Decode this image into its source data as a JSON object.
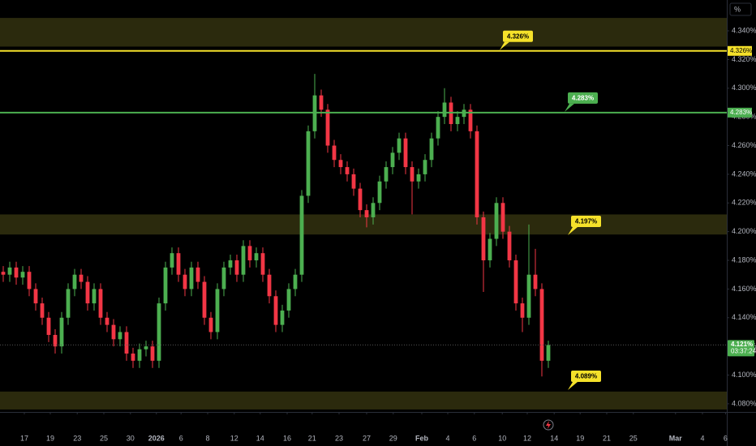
{
  "chart_data": {
    "type": "candlestick",
    "axis_unit": "%",
    "up_color": "#4caf50",
    "down_color": "#f23645",
    "xlim": [
      0,
      112
    ],
    "xticks": [
      {
        "value": 3.75,
        "label": "17"
      },
      {
        "value": 7.75,
        "label": "19"
      },
      {
        "value": 11.9,
        "label": "23"
      },
      {
        "value": 16,
        "label": "25"
      },
      {
        "value": 20.1,
        "label": "30"
      },
      {
        "value": 24.1,
        "label": "2026"
      },
      {
        "value": 27.9,
        "label": "6"
      },
      {
        "value": 32,
        "label": "8"
      },
      {
        "value": 36.1,
        "label": "12"
      },
      {
        "value": 40.1,
        "label": "14"
      },
      {
        "value": 44.25,
        "label": "16"
      },
      {
        "value": 48.1,
        "label": "21"
      },
      {
        "value": 52.25,
        "label": "23"
      },
      {
        "value": 56.5,
        "label": "27"
      },
      {
        "value": 60.6,
        "label": "29"
      },
      {
        "value": 65,
        "label": "Feb"
      },
      {
        "value": 69,
        "label": "4"
      },
      {
        "value": 73.1,
        "label": "6"
      },
      {
        "value": 77.4,
        "label": "10"
      },
      {
        "value": 81.25,
        "label": "12"
      },
      {
        "value": 85.4,
        "label": "14"
      },
      {
        "value": 89.4,
        "label": "19"
      },
      {
        "value": 93.5,
        "label": "21"
      },
      {
        "value": 97.6,
        "label": "25"
      },
      {
        "value": 104.1,
        "label": "Mar"
      },
      {
        "value": 108.25,
        "label": "4"
      },
      {
        "value": 111.8,
        "label": "6"
      }
    ],
    "ylim": [
      4.0743,
      4.3615
    ],
    "yticks": [
      {
        "value": 4.08,
        "label": "4.080%"
      },
      {
        "value": 4.1,
        "label": "4.100%"
      },
      {
        "value": 4.12,
        "label": "4.120%"
      },
      {
        "value": 4.14,
        "label": "4.140%"
      },
      {
        "value": 4.16,
        "label": "4.160%"
      },
      {
        "value": 4.18,
        "label": "4.180%"
      },
      {
        "value": 4.2,
        "label": "4.200%"
      },
      {
        "value": 4.22,
        "label": "4.220%"
      },
      {
        "value": 4.24,
        "label": "4.240%"
      },
      {
        "value": 4.26,
        "label": "4.260%"
      },
      {
        "value": 4.28,
        "label": "4.280%"
      },
      {
        "value": 4.3,
        "label": "4.300%"
      },
      {
        "value": 4.32,
        "label": "4.320%"
      },
      {
        "value": 4.34,
        "label": "4.340%"
      }
    ],
    "open": [
      4.172,
      4.17,
      4.175,
      4.168,
      4.172,
      4.16,
      4.15,
      4.14,
      4.128,
      4.12,
      4.14,
      4.16,
      4.17,
      4.165,
      4.15,
      4.16,
      4.14,
      4.135,
      4.125,
      4.13,
      4.115,
      4.11,
      4.118,
      4.12,
      4.11,
      4.15,
      4.175,
      4.185,
      4.17,
      4.16,
      4.175,
      4.165,
      4.14,
      4.13,
      4.16,
      4.175,
      4.18,
      4.17,
      4.19,
      4.18,
      4.185,
      4.17,
      4.155,
      4.135,
      4.145,
      4.16,
      4.17,
      4.225,
      4.27,
      4.295,
      4.285,
      4.26,
      4.25,
      4.245,
      4.24,
      4.23,
      4.215,
      4.21,
      4.22,
      4.235,
      4.245,
      4.255,
      4.265,
      4.245,
      4.235,
      4.24,
      4.25,
      4.265,
      4.28,
      4.29,
      4.275,
      4.28,
      4.285,
      4.27,
      4.21,
      4.18,
      4.195,
      4.22,
      4.2,
      4.18,
      4.15,
      4.14,
      4.17,
      4.16,
      4.11
    ],
    "high": [
      4.176,
      4.179,
      4.179,
      4.176,
      4.176,
      4.164,
      4.154,
      4.144,
      4.132,
      4.144,
      4.164,
      4.174,
      4.174,
      4.169,
      4.164,
      4.164,
      4.144,
      4.139,
      4.134,
      4.134,
      4.119,
      4.122,
      4.124,
      4.124,
      4.154,
      4.179,
      4.189,
      4.189,
      4.174,
      4.179,
      4.179,
      4.169,
      4.144,
      4.164,
      4.179,
      4.184,
      4.184,
      4.194,
      4.194,
      4.189,
      4.189,
      4.174,
      4.159,
      4.149,
      4.164,
      4.174,
      4.229,
      4.274,
      4.31,
      4.299,
      4.289,
      4.264,
      4.254,
      4.249,
      4.244,
      4.234,
      4.219,
      4.224,
      4.239,
      4.249,
      4.259,
      4.269,
      4.269,
      4.249,
      4.244,
      4.254,
      4.269,
      4.284,
      4.3,
      4.294,
      4.284,
      4.289,
      4.289,
      4.274,
      4.214,
      4.199,
      4.224,
      4.224,
      4.204,
      4.184,
      4.154,
      4.205,
      4.188,
      4.164,
      4.124
    ],
    "low": [
      4.165,
      4.165,
      4.163,
      4.163,
      4.155,
      4.145,
      4.135,
      4.123,
      4.115,
      4.115,
      4.135,
      4.155,
      4.16,
      4.145,
      4.145,
      4.135,
      4.13,
      4.12,
      4.12,
      4.11,
      4.105,
      4.105,
      4.113,
      4.105,
      4.105,
      4.145,
      4.17,
      4.165,
      4.155,
      4.155,
      4.16,
      4.135,
      4.125,
      4.125,
      4.155,
      4.17,
      4.165,
      4.165,
      4.175,
      4.175,
      4.165,
      4.15,
      4.13,
      4.13,
      4.14,
      4.155,
      4.165,
      4.22,
      4.265,
      4.28,
      4.255,
      4.245,
      4.24,
      4.235,
      4.225,
      4.21,
      4.203,
      4.205,
      4.215,
      4.23,
      4.24,
      4.25,
      4.24,
      4.212,
      4.23,
      4.235,
      4.245,
      4.26,
      4.275,
      4.27,
      4.27,
      4.275,
      4.265,
      4.205,
      4.158,
      4.175,
      4.19,
      4.195,
      4.175,
      4.145,
      4.13,
      4.135,
      4.155,
      4.099,
      4.105
    ],
    "close": [
      4.17,
      4.175,
      4.168,
      4.172,
      4.16,
      4.15,
      4.14,
      4.128,
      4.12,
      4.14,
      4.16,
      4.17,
      4.165,
      4.15,
      4.16,
      4.14,
      4.135,
      4.125,
      4.13,
      4.115,
      4.11,
      4.118,
      4.12,
      4.11,
      4.15,
      4.175,
      4.185,
      4.17,
      4.16,
      4.175,
      4.165,
      4.14,
      4.13,
      4.16,
      4.175,
      4.18,
      4.17,
      4.19,
      4.18,
      4.185,
      4.17,
      4.155,
      4.135,
      4.145,
      4.16,
      4.17,
      4.225,
      4.27,
      4.295,
      4.285,
      4.26,
      4.25,
      4.245,
      4.24,
      4.23,
      4.215,
      4.21,
      4.22,
      4.235,
      4.245,
      4.255,
      4.265,
      4.245,
      4.235,
      4.24,
      4.25,
      4.265,
      4.28,
      4.29,
      4.275,
      4.28,
      4.285,
      4.27,
      4.21,
      4.18,
      4.195,
      4.22,
      4.2,
      4.18,
      4.15,
      4.14,
      4.17,
      4.16,
      4.11,
      4.121
    ],
    "zones": [
      {
        "ylim": [
          4.329,
          4.349
        ]
      },
      {
        "ylim": [
          4.198,
          4.212
        ]
      },
      {
        "ylim": [
          4.076,
          4.0885
        ]
      }
    ],
    "levels": [
      {
        "value": 4.326,
        "label": "4.326%",
        "style": "line",
        "color": "#f5e12a"
      },
      {
        "value": 4.283,
        "label": "4.283%",
        "style": "line",
        "color": "#4caf50"
      },
      {
        "value": 4.197,
        "label": "4.197%",
        "style": "callout",
        "color": "#f5e12a"
      },
      {
        "value": 4.089,
        "label": "4.089%",
        "style": "callout",
        "color": "#f5e12a"
      }
    ],
    "last_price": {
      "value": 4.121,
      "label": "4.121%",
      "countdown": "03:37:24",
      "color": "#4caf50"
    }
  }
}
